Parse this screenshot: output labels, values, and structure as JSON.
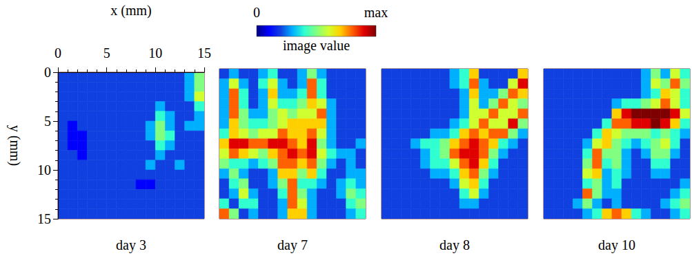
{
  "chart_data": [
    {
      "type": "heatmap",
      "title": "day 3",
      "x_label": "x (mm)",
      "y_label": "y (mm)",
      "xlim": [
        0,
        15
      ],
      "ylim": [
        0,
        15
      ],
      "xticks": [
        0,
        5,
        10,
        15
      ],
      "yticks": [
        0,
        5,
        10,
        15
      ],
      "cells": [
        [
          2,
          2,
          2,
          2,
          2,
          2,
          2,
          2,
          2,
          2,
          2,
          2,
          2,
          3,
          5
        ],
        [
          2,
          2,
          2,
          2,
          2,
          2,
          2,
          2,
          2,
          2,
          2,
          2,
          2,
          3,
          5
        ],
        [
          2,
          2,
          2,
          2,
          2,
          2,
          2,
          2,
          2,
          2,
          2,
          2,
          2,
          3,
          6
        ],
        [
          2,
          2,
          2,
          2,
          2,
          2,
          2,
          2,
          2,
          2,
          3,
          2,
          2,
          2,
          4
        ],
        [
          2,
          2,
          2,
          2,
          2,
          2,
          2,
          2,
          2,
          2,
          4,
          3,
          2,
          2,
          3
        ],
        [
          2,
          1,
          2,
          2,
          2,
          2,
          2,
          2,
          2,
          3,
          5,
          3,
          2,
          3,
          3
        ],
        [
          2,
          1,
          1,
          2,
          2,
          2,
          2,
          2,
          2,
          3,
          5,
          4,
          2,
          2,
          2
        ],
        [
          2,
          1,
          1,
          2,
          2,
          2,
          2,
          2,
          2,
          2,
          4,
          3,
          2,
          2,
          2
        ],
        [
          2,
          2,
          1,
          2,
          2,
          2,
          2,
          2,
          2,
          2,
          3,
          2,
          2,
          2,
          2
        ],
        [
          2,
          2,
          2,
          2,
          2,
          2,
          2,
          2,
          2,
          3,
          2,
          2,
          3,
          2,
          2
        ],
        [
          2,
          2,
          2,
          2,
          2,
          2,
          2,
          2,
          2,
          2,
          2,
          2,
          2,
          2,
          2
        ],
        [
          2,
          2,
          2,
          2,
          2,
          2,
          2,
          2,
          1,
          1,
          2,
          2,
          2,
          2,
          2
        ],
        [
          2,
          2,
          2,
          2,
          2,
          2,
          2,
          2,
          2,
          2,
          2,
          2,
          2,
          2,
          2
        ],
        [
          2,
          2,
          2,
          2,
          2,
          2,
          2,
          2,
          2,
          2,
          2,
          2,
          2,
          2,
          2
        ],
        [
          2,
          2,
          2,
          2,
          2,
          2,
          2,
          2,
          2,
          2,
          2,
          2,
          2,
          2,
          2
        ]
      ]
    },
    {
      "type": "heatmap",
      "title": "day 7",
      "xlim": [
        0,
        15
      ],
      "ylim": [
        0,
        15
      ],
      "tick_labels": false,
      "cells": [
        [
          2,
          3,
          2,
          2,
          3,
          4,
          2,
          2,
          3,
          5,
          3,
          2,
          2,
          2,
          2
        ],
        [
          3,
          6,
          3,
          2,
          4,
          6,
          3,
          2,
          3,
          8,
          4,
          2,
          2,
          2,
          2
        ],
        [
          3,
          8,
          4,
          2,
          3,
          7,
          3,
          3,
          4,
          8,
          4,
          2,
          2,
          2,
          2
        ],
        [
          3,
          8,
          4,
          2,
          3,
          6,
          4,
          4,
          5,
          7,
          6,
          3,
          2,
          2,
          2
        ],
        [
          3,
          8,
          5,
          3,
          3,
          5,
          6,
          5,
          6,
          6,
          8,
          3,
          2,
          2,
          2
        ],
        [
          3,
          7,
          5,
          4,
          4,
          5,
          6,
          7,
          7,
          7,
          7,
          3,
          2,
          2,
          2
        ],
        [
          4,
          7,
          6,
          5,
          6,
          6,
          8,
          7,
          7,
          8,
          6,
          3,
          2,
          2,
          2
        ],
        [
          7,
          9,
          9,
          8,
          8,
          9,
          9,
          8,
          7,
          9,
          5,
          3,
          2,
          2,
          3
        ],
        [
          6,
          8,
          7,
          6,
          5,
          7,
          8,
          9,
          8,
          9,
          6,
          4,
          3,
          3,
          2
        ],
        [
          5,
          4,
          4,
          3,
          4,
          5,
          8,
          8,
          7,
          8,
          5,
          3,
          2,
          3,
          2
        ],
        [
          3,
          5,
          3,
          2,
          2,
          3,
          7,
          7,
          5,
          7,
          4,
          2,
          2,
          3,
          3
        ],
        [
          2,
          4,
          5,
          2,
          2,
          3,
          5,
          8,
          4,
          4,
          3,
          2,
          3,
          4,
          3
        ],
        [
          2,
          3,
          6,
          3,
          2,
          2,
          4,
          8,
          5,
          3,
          2,
          2,
          3,
          5,
          4
        ],
        [
          4,
          2,
          4,
          4,
          2,
          2,
          3,
          8,
          6,
          3,
          2,
          2,
          2,
          4,
          5
        ],
        [
          8,
          5,
          2,
          3,
          2,
          2,
          3,
          7,
          7,
          3,
          2,
          2,
          2,
          3,
          4
        ]
      ]
    },
    {
      "type": "heatmap",
      "title": "day 8",
      "xlim": [
        0,
        15
      ],
      "ylim": [
        0,
        15
      ],
      "tick_labels": false,
      "cells": [
        [
          2,
          2,
          2,
          2,
          2,
          2,
          2,
          3,
          4,
          7,
          2,
          2,
          2,
          2,
          7
        ],
        [
          2,
          2,
          2,
          2,
          2,
          2,
          2,
          3,
          4,
          8,
          3,
          2,
          2,
          6,
          9
        ],
        [
          2,
          2,
          2,
          2,
          2,
          2,
          2,
          2,
          3,
          7,
          3,
          3,
          5,
          8,
          7
        ],
        [
          2,
          2,
          2,
          2,
          2,
          2,
          2,
          2,
          3,
          6,
          3,
          5,
          8,
          6,
          5
        ],
        [
          2,
          2,
          2,
          2,
          2,
          2,
          2,
          2,
          3,
          6,
          6,
          8,
          6,
          6,
          8
        ],
        [
          2,
          2,
          2,
          2,
          2,
          2,
          2,
          3,
          4,
          6,
          8,
          6,
          6,
          9,
          5
        ],
        [
          2,
          2,
          2,
          2,
          2,
          3,
          3,
          4,
          7,
          8,
          7,
          8,
          8,
          5,
          3
        ],
        [
          2,
          2,
          2,
          3,
          4,
          4,
          5,
          7,
          8,
          9,
          8,
          7,
          4,
          3,
          2
        ],
        [
          2,
          2,
          2,
          2,
          3,
          4,
          5,
          8,
          9,
          9,
          8,
          5,
          3,
          2,
          2
        ],
        [
          2,
          2,
          2,
          2,
          3,
          4,
          4,
          6,
          8,
          9,
          7,
          4,
          2,
          2,
          2
        ],
        [
          2,
          2,
          2,
          2,
          2,
          3,
          3,
          4,
          7,
          8,
          5,
          3,
          2,
          2,
          2
        ],
        [
          2,
          2,
          2,
          2,
          2,
          2,
          2,
          3,
          6,
          7,
          4,
          2,
          2,
          2,
          2
        ],
        [
          2,
          2,
          2,
          2,
          2,
          2,
          2,
          2,
          4,
          6,
          3,
          2,
          2,
          2,
          2
        ],
        [
          2,
          2,
          2,
          2,
          2,
          2,
          2,
          2,
          3,
          3,
          2,
          2,
          2,
          2,
          2
        ],
        [
          2,
          2,
          2,
          2,
          2,
          2,
          2,
          2,
          2,
          2,
          2,
          2,
          2,
          2,
          2
        ]
      ]
    },
    {
      "type": "heatmap",
      "title": "day 10",
      "xlim": [
        0,
        15
      ],
      "ylim": [
        0,
        15
      ],
      "tick_labels": false,
      "cells": [
        [
          2,
          2,
          2,
          2,
          2,
          2,
          2,
          2,
          2,
          2,
          3,
          5,
          3,
          6,
          4
        ],
        [
          2,
          2,
          2,
          2,
          2,
          2,
          2,
          2,
          2,
          2,
          3,
          6,
          5,
          8,
          5
        ],
        [
          2,
          2,
          2,
          2,
          2,
          2,
          2,
          2,
          2,
          2,
          3,
          4,
          7,
          6,
          4
        ],
        [
          2,
          2,
          2,
          2,
          2,
          2,
          2,
          3,
          4,
          4,
          5,
          6,
          8,
          6,
          4
        ],
        [
          2,
          2,
          2,
          2,
          2,
          2,
          2,
          7,
          9,
          10,
          10,
          10,
          10,
          9,
          6
        ],
        [
          2,
          2,
          2,
          2,
          2,
          2,
          4,
          8,
          8,
          9,
          9,
          10,
          9,
          7,
          4
        ],
        [
          2,
          2,
          2,
          2,
          2,
          4,
          7,
          6,
          5,
          5,
          5,
          4,
          5,
          4,
          3
        ],
        [
          2,
          2,
          2,
          2,
          3,
          6,
          7,
          5,
          4,
          3,
          4,
          5,
          6,
          4,
          2
        ],
        [
          2,
          2,
          2,
          2,
          4,
          8,
          5,
          5,
          3,
          2,
          3,
          5,
          5,
          3,
          2
        ],
        [
          2,
          2,
          2,
          2,
          5,
          8,
          4,
          5,
          3,
          2,
          2,
          4,
          4,
          2,
          2
        ],
        [
          2,
          2,
          2,
          2,
          6,
          7,
          3,
          4,
          3,
          2,
          2,
          3,
          3,
          2,
          2
        ],
        [
          2,
          2,
          2,
          2,
          4,
          5,
          3,
          4,
          2,
          2,
          2,
          2,
          2,
          2,
          3
        ],
        [
          2,
          2,
          2,
          2,
          8,
          5,
          3,
          3,
          2,
          2,
          2,
          2,
          2,
          3,
          4
        ],
        [
          2,
          2,
          2,
          3,
          5,
          3,
          2,
          3,
          2,
          2,
          2,
          2,
          3,
          4,
          5
        ],
        [
          2,
          2,
          2,
          2,
          3,
          4,
          7,
          8,
          7,
          4,
          3,
          2,
          2,
          3,
          4
        ]
      ]
    }
  ],
  "colorbar": {
    "label": "image value",
    "range": [
      0,
      10
    ],
    "ticks": [
      0,
      {
        "value": 10,
        "label": "max"
      }
    ],
    "colors": [
      "#00007f",
      "#0000ff",
      "#1040e0",
      "#00b0ff",
      "#30ffd0",
      "#80ff80",
      "#d0ff30",
      "#ffd000",
      "#ff6000",
      "#e00000",
      "#7f0000"
    ]
  }
}
